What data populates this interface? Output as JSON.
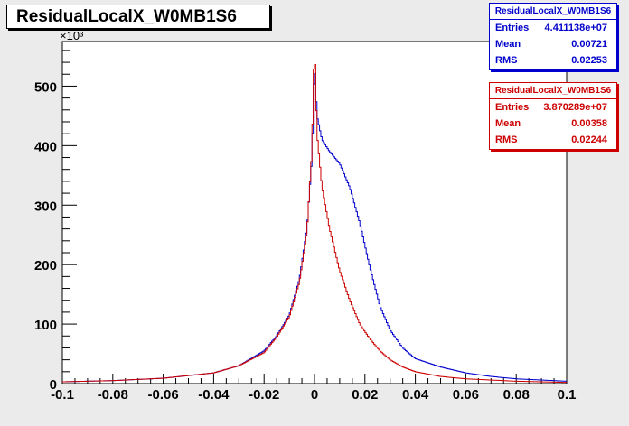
{
  "title": "ResidualLocalX_W0MB1S6",
  "stats": [
    {
      "name": "ResidualLocalX_W0MB1S6",
      "color": "#0000cc",
      "entries_label": "Entries",
      "entries": "4.411138e+07",
      "mean_label": "Mean",
      "mean": "0.00721",
      "rms_label": "RMS",
      "rms": "0.02253"
    },
    {
      "name": "ResidualLocalX_W0MB1S6",
      "color": "#cc0000",
      "entries_label": "Entries",
      "entries": "3.870289e+07",
      "mean_label": "Mean",
      "mean": "0.00358",
      "rms_label": "RMS",
      "rms": "0.02244"
    }
  ],
  "chart_data": {
    "type": "line",
    "title": "ResidualLocalX_W0MB1S6",
    "xlabel": "",
    "ylabel": "",
    "y_multiplier_label": "×10³",
    "xlim": [
      -0.1,
      0.1
    ],
    "ylim": [
      0,
      575
    ],
    "x_ticks": [
      "-0.1",
      "-0.08",
      "-0.06",
      "-0.04",
      "-0.02",
      "0",
      "0.02",
      "0.04",
      "0.06",
      "0.08",
      "0.1"
    ],
    "y_ticks": [
      "0",
      "100",
      "200",
      "300",
      "400",
      "500"
    ],
    "series": [
      {
        "color": "#0000cc",
        "x": [
          -0.1,
          -0.08,
          -0.06,
          -0.04,
          -0.03,
          -0.02,
          -0.015,
          -0.01,
          -0.006,
          -0.003,
          -0.001,
          0.0,
          0.001,
          0.003,
          0.006,
          0.01,
          0.014,
          0.018,
          0.022,
          0.026,
          0.03,
          0.035,
          0.04,
          0.05,
          0.06,
          0.07,
          0.08,
          0.09,
          0.1
        ],
        "y": [
          3,
          5,
          9,
          18,
          30,
          55,
          80,
          115,
          175,
          260,
          380,
          545,
          450,
          410,
          390,
          370,
          330,
          270,
          195,
          130,
          90,
          60,
          42,
          28,
          18,
          12,
          8,
          6,
          4
        ]
      },
      {
        "color": "#cc0000",
        "x": [
          -0.1,
          -0.08,
          -0.06,
          -0.04,
          -0.03,
          -0.02,
          -0.015,
          -0.01,
          -0.006,
          -0.003,
          -0.001,
          0.0,
          0.001,
          0.003,
          0.006,
          0.01,
          0.014,
          0.018,
          0.022,
          0.026,
          0.03,
          0.035,
          0.04,
          0.05,
          0.06,
          0.07,
          0.08,
          0.09,
          0.1
        ],
        "y": [
          3,
          5,
          9,
          18,
          30,
          52,
          78,
          112,
          170,
          255,
          390,
          575,
          420,
          330,
          260,
          190,
          140,
          100,
          75,
          55,
          40,
          28,
          20,
          12,
          8,
          6,
          4,
          3,
          2
        ]
      }
    ]
  }
}
